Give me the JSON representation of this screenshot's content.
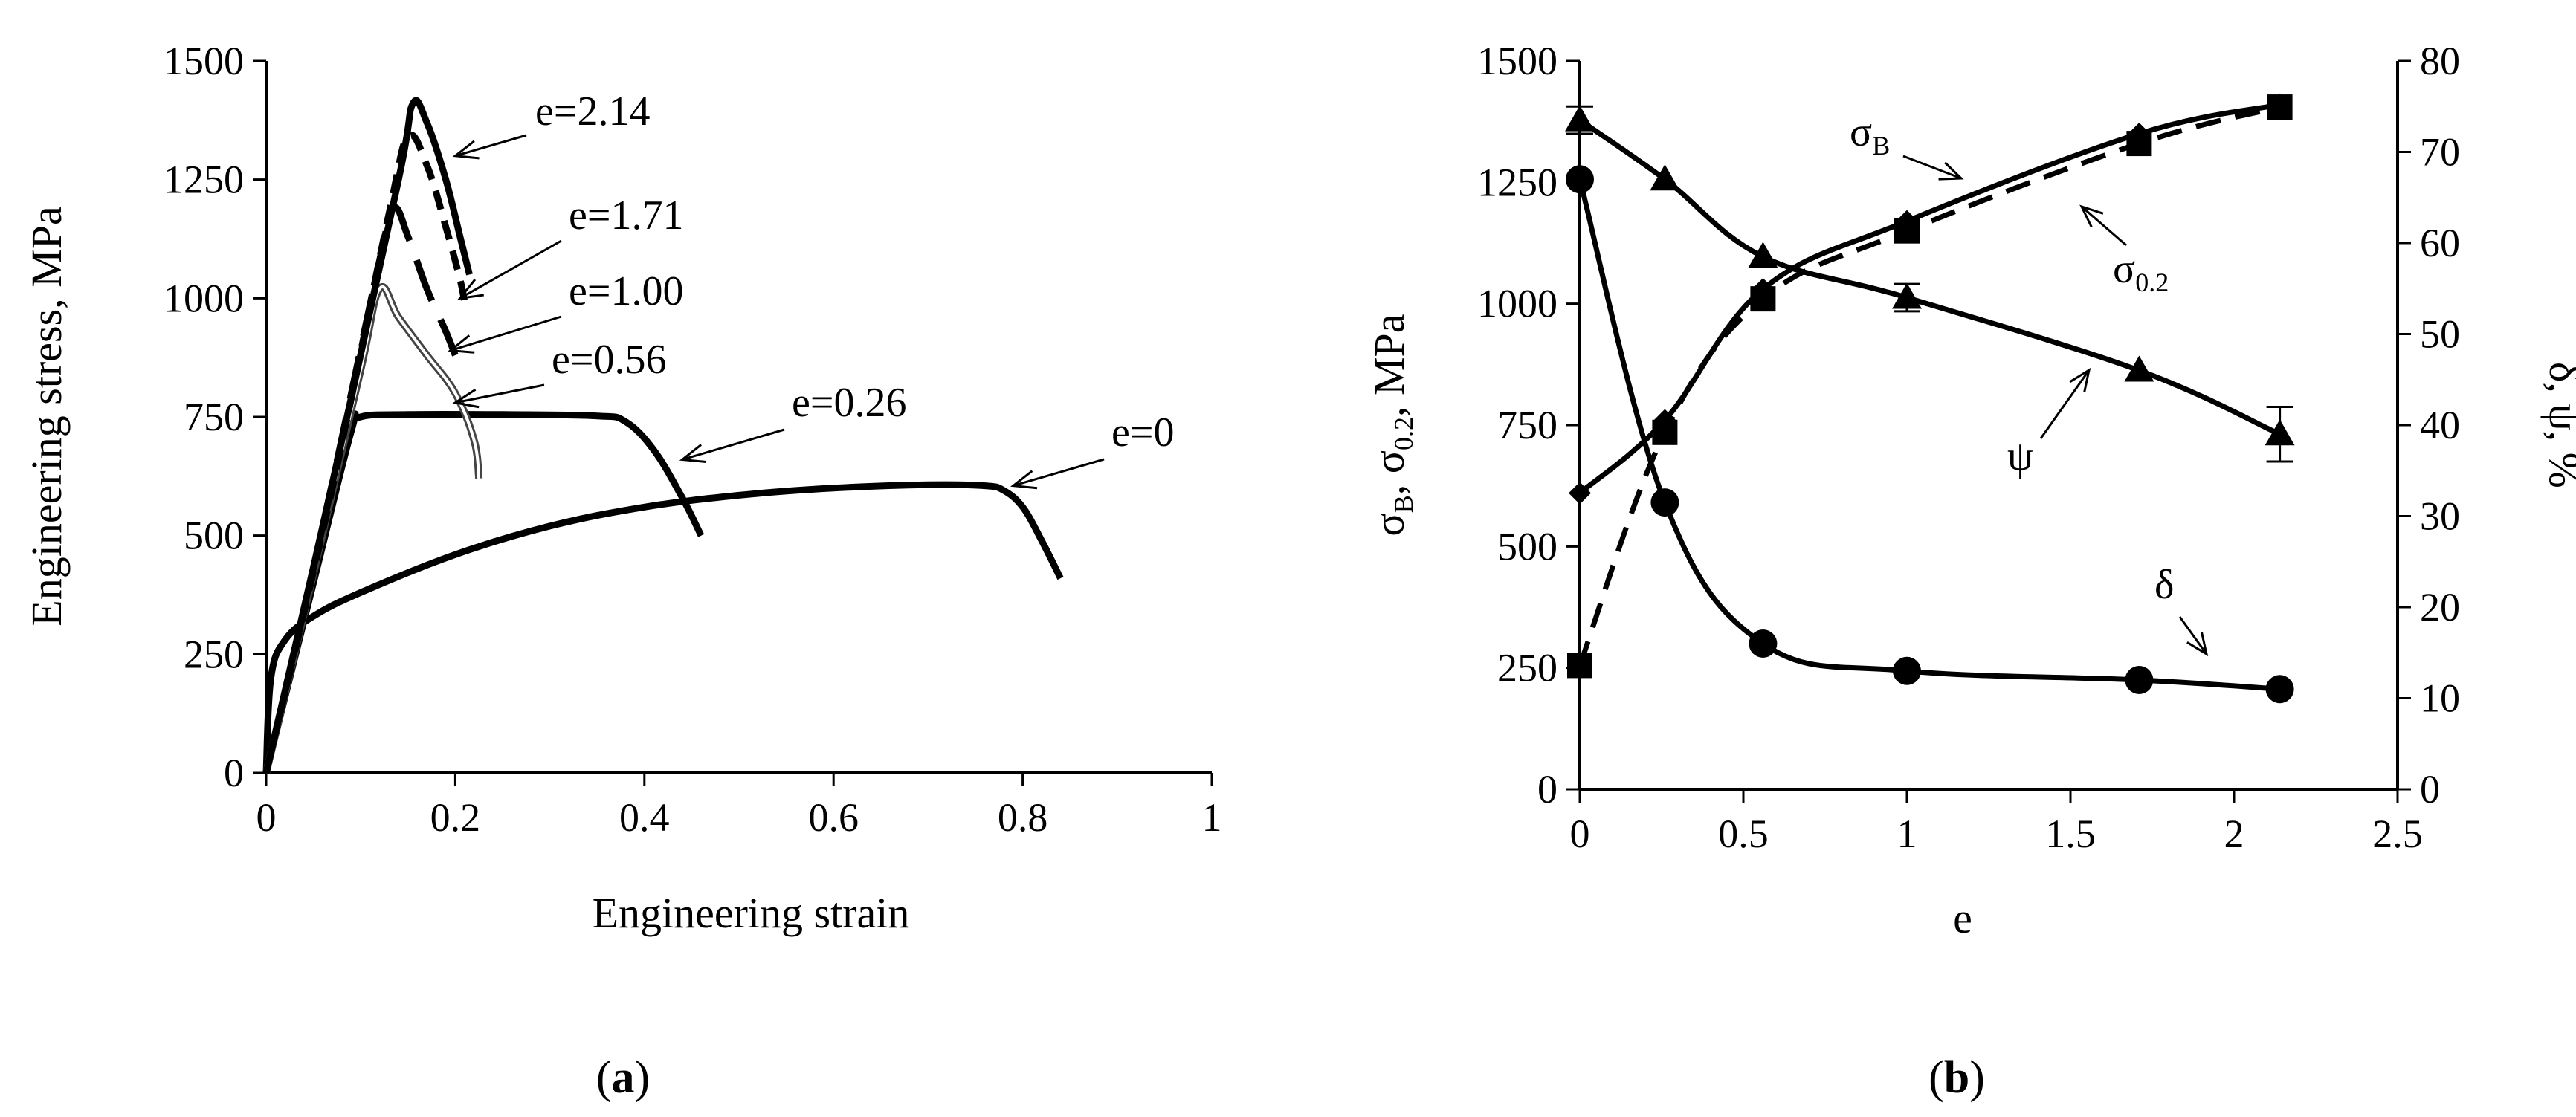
{
  "panel_labels": {
    "a_open": "(",
    "a_letter": "a",
    "a_close": ")",
    "b_open": "(",
    "b_letter": "b",
    "b_close": ")"
  },
  "chart_data": [
    {
      "type": "line",
      "panel": "a",
      "xlabel": "Engineering strain",
      "ylabel": "Engineering stress, MPa",
      "xlim": [
        0,
        1
      ],
      "ylim": [
        0,
        1500
      ],
      "xticks": [
        "0",
        "0.2",
        "0.4",
        "0.6",
        "0.8",
        "1"
      ],
      "yticks": [
        "0",
        "250",
        "500",
        "750",
        "1000",
        "1250",
        "1500"
      ],
      "grid": false,
      "series": [
        {
          "name": "e=0",
          "style": "solid-thick",
          "x": [
            0,
            0.005,
            0.02,
            0.05,
            0.1,
            0.2,
            0.3,
            0.4,
            0.5,
            0.6,
            0.7,
            0.76,
            0.78,
            0.8,
            0.82,
            0.84
          ],
          "y": [
            0,
            200,
            280,
            330,
            380,
            460,
            520,
            560,
            585,
            600,
            607,
            605,
            595,
            560,
            490,
            410
          ]
        },
        {
          "name": "e=0.26",
          "style": "solid-thick",
          "x": [
            0,
            0.05,
            0.09,
            0.1,
            0.15,
            0.25,
            0.35,
            0.38,
            0.41,
            0.44,
            0.46
          ],
          "y": [
            0,
            400,
            720,
            750,
            755,
            755,
            752,
            740,
            680,
            580,
            500
          ]
        },
        {
          "name": "e=0.56",
          "style": "double-thin",
          "x": [
            0,
            0.05,
            0.1,
            0.12,
            0.14,
            0.17,
            0.2,
            0.22,
            0.225
          ],
          "y": [
            0,
            420,
            850,
            1020,
            960,
            880,
            800,
            700,
            620
          ]
        },
        {
          "name": "e=1.00",
          "style": "long-dash",
          "x": [
            0,
            0.06,
            0.12,
            0.135,
            0.15,
            0.17,
            0.19,
            0.2
          ],
          "y": [
            0,
            520,
            1080,
            1190,
            1130,
            1020,
            930,
            880
          ]
        },
        {
          "name": "e=1.71",
          "style": "dash",
          "x": [
            0,
            0.07,
            0.13,
            0.15,
            0.17,
            0.19,
            0.205,
            0.21
          ],
          "y": [
            0,
            600,
            1180,
            1340,
            1280,
            1150,
            1040,
            990
          ]
        },
        {
          "name": "e=2.14",
          "style": "solid-thick",
          "x": [
            0,
            0.07,
            0.14,
            0.155,
            0.17,
            0.19,
            0.205,
            0.215
          ],
          "y": [
            0,
            610,
            1250,
            1410,
            1370,
            1250,
            1130,
            1050
          ]
        }
      ],
      "annotations": [
        {
          "text": "e=2.14",
          "x": 0.2,
          "y": 1300
        },
        {
          "text": "e=1.71",
          "x": 0.205,
          "y": 1000
        },
        {
          "text": "e=1.00",
          "x": 0.195,
          "y": 890
        },
        {
          "text": "e=0.56",
          "x": 0.2,
          "y": 780
        },
        {
          "text": "e=0.26",
          "x": 0.44,
          "y": 660
        },
        {
          "text": "e=0",
          "x": 0.79,
          "y": 605
        }
      ]
    },
    {
      "type": "line",
      "panel": "b",
      "xlabel": "e",
      "ylabel_left": "σB, σ0.2, MPa",
      "ylabel_left_parts": {
        "s1": "σ",
        "sub1": "B",
        "mid": ", σ",
        "sub2": "0.2",
        "tail": ", MPa"
      },
      "ylabel_right": "δ, ψ, %",
      "xlim": [
        0,
        2.5
      ],
      "ylim_left": [
        0,
        1500
      ],
      "ylim_right": [
        0,
        80
      ],
      "xticks": [
        "0",
        "0.5",
        "1",
        "1.5",
        "2",
        "2.5"
      ],
      "yticks_left": [
        "0",
        "250",
        "500",
        "750",
        "1000",
        "1250",
        "1500"
      ],
      "yticks_right": [
        "0",
        "10",
        "20",
        "30",
        "40",
        "50",
        "60",
        "70",
        "80"
      ],
      "grid": false,
      "series": [
        {
          "name": "σB",
          "axis": "left",
          "style": "solid",
          "marker": "diamond",
          "x": [
            0,
            0.26,
            0.56,
            1.0,
            1.71,
            2.14
          ],
          "y": [
            610,
            760,
            1030,
            1170,
            1350,
            1410
          ]
        },
        {
          "name": "σ0.2",
          "axis": "left",
          "style": "dashed",
          "marker": "square",
          "x": [
            0,
            0.26,
            0.56,
            1.0,
            1.71,
            2.14
          ],
          "y": [
            255,
            735,
            1010,
            1150,
            1330,
            1405
          ]
        },
        {
          "name": "ψ",
          "axis": "right",
          "style": "solid",
          "marker": "triangle",
          "x": [
            0,
            0.26,
            0.56,
            1.0,
            1.71,
            2.14
          ],
          "y": [
            73.5,
            67,
            58.5,
            54,
            46,
            39
          ]
        },
        {
          "name": "δ",
          "axis": "right",
          "style": "solid",
          "marker": "circle",
          "x": [
            0,
            0.26,
            0.56,
            1.0,
            1.71,
            2.14
          ],
          "y": [
            67,
            31.5,
            16,
            13,
            12,
            11
          ]
        }
      ],
      "annotations": [
        {
          "text": "σB",
          "parts": {
            "base": "σ",
            "sub": "B"
          }
        },
        {
          "text": "σ0.2",
          "parts": {
            "base": "σ",
            "sub": "0.2"
          }
        },
        {
          "text": "ψ"
        },
        {
          "text": "δ"
        }
      ]
    }
  ]
}
